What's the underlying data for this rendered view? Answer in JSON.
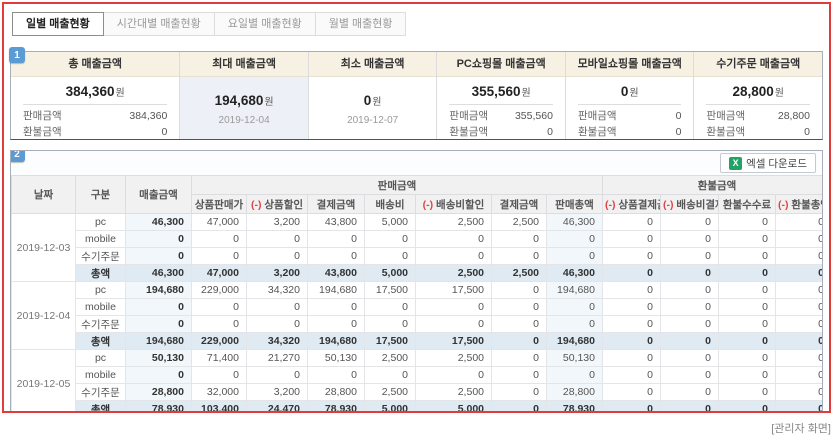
{
  "tabs": [
    {
      "key": "daily",
      "label": "일별 매출현황",
      "active": true
    },
    {
      "key": "hourly",
      "label": "시간대별 매출현황",
      "active": false
    },
    {
      "key": "weekday",
      "label": "요일별 매출현황",
      "active": false
    },
    {
      "key": "monthly",
      "label": "월별 매출현황",
      "active": false
    }
  ],
  "section1": {
    "badge": "1",
    "cards": [
      {
        "title": "총 매출금액",
        "amount": "384,360",
        "currency": "원",
        "details": [
          {
            "label": "판매금액",
            "value": "384,360"
          },
          {
            "label": "환불금액",
            "value": "0"
          }
        ]
      },
      {
        "title": "최대 매출금액",
        "amount": "194,680",
        "currency": "원",
        "date": "2019-12-04",
        "tinted": true
      },
      {
        "title": "최소 매출금액",
        "amount": "0",
        "currency": "원",
        "date": "2019-12-07"
      },
      {
        "title": "PC쇼핑몰 매출금액",
        "amount": "355,560",
        "currency": "원",
        "details": [
          {
            "label": "판매금액",
            "value": "355,560"
          },
          {
            "label": "환불금액",
            "value": "0"
          }
        ]
      },
      {
        "title": "모바일쇼핑몰 매출금액",
        "amount": "0",
        "currency": "원",
        "details": [
          {
            "label": "판매금액",
            "value": "0"
          },
          {
            "label": "환불금액",
            "value": "0"
          }
        ]
      },
      {
        "title": "수기주문 매출금액",
        "amount": "28,800",
        "currency": "원",
        "details": [
          {
            "label": "판매금액",
            "value": "28,800"
          },
          {
            "label": "환불금액",
            "value": "0"
          }
        ]
      }
    ]
  },
  "section2": {
    "badge": "2",
    "excel_icon_text": "X",
    "excel_label": "엑셀 다운로드",
    "table": {
      "header": {
        "row1": [
          {
            "label": "날짜",
            "rowspan": 2
          },
          {
            "label": "구분",
            "rowspan": 2
          },
          {
            "label": "매출금액",
            "rowspan": 2
          },
          {
            "label": "판매금액",
            "colspan": 7
          },
          {
            "label": "환불금액",
            "colspan": 4
          }
        ],
        "row2": [
          {
            "label": "상품판매가"
          },
          {
            "label": "상품할인",
            "neg": true
          },
          {
            "label": "결제금액"
          },
          {
            "label": "배송비"
          },
          {
            "label": "배송비할인",
            "neg": true
          },
          {
            "label": "결제금액"
          },
          {
            "label": "판매총액"
          },
          {
            "label": "상품결제금액",
            "neg": true
          },
          {
            "label": "배송비결제금액",
            "neg": true
          },
          {
            "label": "환불수수료"
          },
          {
            "label": "환불총액",
            "neg": true
          }
        ]
      },
      "groups": [
        {
          "date": "2019-12-03",
          "rows": [
            {
              "category": "pc",
              "values": [
                "46,300",
                "47,000",
                "3,200",
                "43,800",
                "5,000",
                "2,500",
                "2,500",
                "46,300",
                "0",
                "0",
                "0",
                "0"
              ]
            },
            {
              "category": "mobile",
              "values": [
                "0",
                "0",
                "0",
                "0",
                "0",
                "0",
                "0",
                "0",
                "0",
                "0",
                "0",
                "0"
              ]
            },
            {
              "category": "수기주문",
              "values": [
                "0",
                "0",
                "0",
                "0",
                "0",
                "0",
                "0",
                "0",
                "0",
                "0",
                "0",
                "0"
              ]
            },
            {
              "category": "총액",
              "total": true,
              "values": [
                "46,300",
                "47,000",
                "3,200",
                "43,800",
                "5,000",
                "2,500",
                "2,500",
                "46,300",
                "0",
                "0",
                "0",
                "0"
              ]
            }
          ]
        },
        {
          "date": "2019-12-04",
          "rows": [
            {
              "category": "pc",
              "values": [
                "194,680",
                "229,000",
                "34,320",
                "194,680",
                "17,500",
                "17,500",
                "0",
                "194,680",
                "0",
                "0",
                "0",
                "0"
              ]
            },
            {
              "category": "mobile",
              "values": [
                "0",
                "0",
                "0",
                "0",
                "0",
                "0",
                "0",
                "0",
                "0",
                "0",
                "0",
                "0"
              ]
            },
            {
              "category": "수기주문",
              "values": [
                "0",
                "0",
                "0",
                "0",
                "0",
                "0",
                "0",
                "0",
                "0",
                "0",
                "0",
                "0"
              ]
            },
            {
              "category": "총액",
              "total": true,
              "values": [
                "194,680",
                "229,000",
                "34,320",
                "194,680",
                "17,500",
                "17,500",
                "0",
                "194,680",
                "0",
                "0",
                "0",
                "0"
              ]
            }
          ]
        },
        {
          "date": "2019-12-05",
          "rows": [
            {
              "category": "pc",
              "values": [
                "50,130",
                "71,400",
                "21,270",
                "50,130",
                "2,500",
                "2,500",
                "0",
                "50,130",
                "0",
                "0",
                "0",
                "0"
              ]
            },
            {
              "category": "mobile",
              "values": [
                "0",
                "0",
                "0",
                "0",
                "0",
                "0",
                "0",
                "0",
                "0",
                "0",
                "0",
                "0"
              ]
            },
            {
              "category": "수기주문",
              "values": [
                "28,800",
                "32,000",
                "3,200",
                "28,800",
                "2,500",
                "2,500",
                "0",
                "28,800",
                "0",
                "0",
                "0",
                "0"
              ]
            },
            {
              "category": "총액",
              "total": true,
              "values": [
                "78,930",
                "103,400",
                "24,470",
                "78,930",
                "5,000",
                "5,000",
                "0",
                "78,930",
                "0",
                "0",
                "0",
                "0"
              ]
            }
          ]
        }
      ]
    }
  },
  "footer": {
    "caption": "[관리자 화면]"
  },
  "colors": {
    "frame_red": "#e23b3b",
    "badge_blue": "#5b9bd5",
    "negative_red": "#e04343",
    "excel_green": "#21a366",
    "card_header_bg": "#f6f1e3",
    "highlight_col_bg": "#f2f7fb",
    "total_row_bg": "#dfeaf3"
  }
}
